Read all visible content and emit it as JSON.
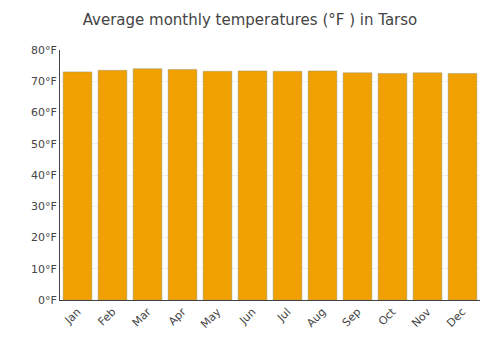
{
  "chart_data": {
    "type": "bar",
    "title": "Average monthly temperatures (°F ) in Tarso",
    "categories": [
      "Jan",
      "Feb",
      "Mar",
      "Apr",
      "May",
      "Jun",
      "Jul",
      "Aug",
      "Sep",
      "Oct",
      "Nov",
      "Dec"
    ],
    "values": [
      73.0,
      73.5,
      74.0,
      73.8,
      73.2,
      73.3,
      73.2,
      73.3,
      72.7,
      72.5,
      72.7,
      72.5
    ],
    "color": "#F0A000",
    "ylim": [
      0,
      80
    ],
    "yticks": [
      {
        "value": 0,
        "label": "0°F"
      },
      {
        "value": 10,
        "label": "10°F"
      },
      {
        "value": 20,
        "label": "20°F"
      },
      {
        "value": 30,
        "label": "30°F"
      },
      {
        "value": 40,
        "label": "40°F"
      },
      {
        "value": 50,
        "label": "50°F"
      },
      {
        "value": 60,
        "label": "60°F"
      },
      {
        "value": 70,
        "label": "70°F"
      },
      {
        "value": 80,
        "label": "80°F"
      }
    ],
    "grid": true
  }
}
